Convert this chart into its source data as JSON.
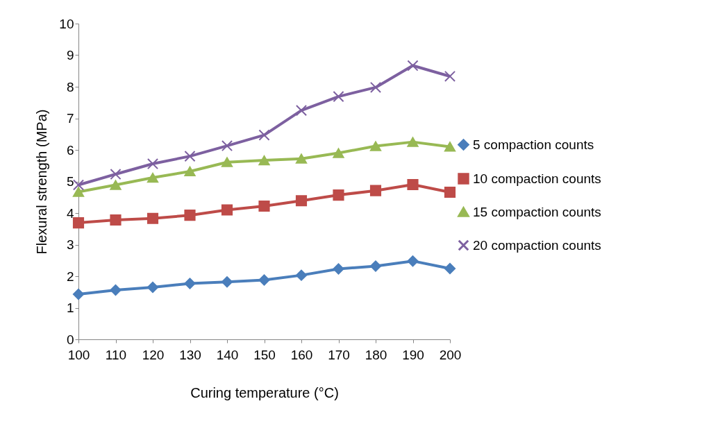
{
  "chart_data": {
    "type": "line",
    "xlabel": "Curing temperature (°C)",
    "ylabel": "Flexural strength (MPa)",
    "x": [
      100,
      110,
      120,
      130,
      140,
      150,
      160,
      170,
      180,
      190,
      200
    ],
    "xlim": [
      100,
      200
    ],
    "xticks": [
      100,
      110,
      120,
      130,
      140,
      150,
      160,
      170,
      180,
      190,
      200
    ],
    "ylim": [
      0,
      10
    ],
    "yticks": [
      0,
      1,
      2,
      3,
      4,
      5,
      6,
      7,
      8,
      9,
      10
    ],
    "grid": false,
    "legend": "right",
    "line_style": "solid",
    "series": [
      {
        "name": "5 compaction counts",
        "color": "#4a7ebb",
        "marker": "diamond",
        "values": [
          1.43,
          1.56,
          1.65,
          1.77,
          1.82,
          1.88,
          2.03,
          2.23,
          2.32,
          2.48,
          2.24
        ]
      },
      {
        "name": "10 compaction counts",
        "color": "#be4b48",
        "marker": "square",
        "values": [
          3.69,
          3.78,
          3.83,
          3.93,
          4.1,
          4.22,
          4.39,
          4.57,
          4.71,
          4.9,
          4.66
        ]
      },
      {
        "name": "15 compaction counts",
        "color": "#98b954",
        "marker": "triangle",
        "values": [
          4.67,
          4.89,
          5.12,
          5.32,
          5.61,
          5.67,
          5.72,
          5.9,
          6.12,
          6.25,
          6.1
        ]
      },
      {
        "name": "20 compaction counts",
        "color": "#7d60a0",
        "marker": "cross",
        "values": [
          4.89,
          5.23,
          5.56,
          5.8,
          6.13,
          6.47,
          7.25,
          7.69,
          7.98,
          8.67,
          8.33
        ]
      }
    ]
  }
}
